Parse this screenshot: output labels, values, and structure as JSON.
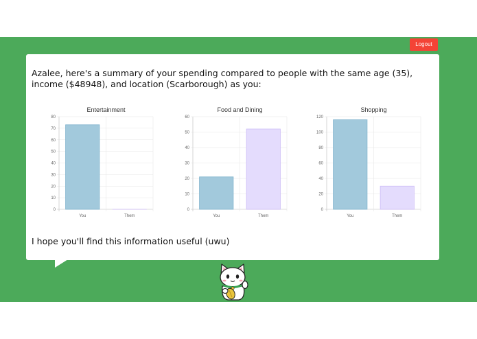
{
  "header": {
    "logout_label": "Logout"
  },
  "summary": {
    "headline": "Azalee, here's a summary of your spending compared to people with the same age (35), income ($48948), and location (Scarborough) as you:",
    "footer": "I hope you'll find this information useful (uwu)"
  },
  "colors": {
    "you": "#a2c9dc",
    "you_border": "#7fb3cd",
    "them": "#e4dcfd",
    "them_border": "#cdbcf7",
    "background": "#4caa5a"
  },
  "chart_data": [
    {
      "type": "bar",
      "title": "Entertainment",
      "categories": [
        "You",
        "Them"
      ],
      "values": [
        73,
        0
      ],
      "ylim": [
        0,
        80
      ],
      "yticks": [
        0,
        10,
        20,
        30,
        40,
        50,
        60,
        70,
        80
      ]
    },
    {
      "type": "bar",
      "title": "Food and Dining",
      "categories": [
        "You",
        "Them"
      ],
      "values": [
        21,
        52
      ],
      "ylim": [
        0,
        60
      ],
      "yticks": [
        0,
        10,
        20,
        30,
        40,
        50,
        60
      ]
    },
    {
      "type": "bar",
      "title": "Shopping",
      "categories": [
        "You",
        "Them"
      ],
      "values": [
        116,
        30
      ],
      "ylim": [
        0,
        120
      ],
      "yticks": [
        0,
        20,
        40,
        60,
        80,
        100,
        120
      ]
    }
  ]
}
